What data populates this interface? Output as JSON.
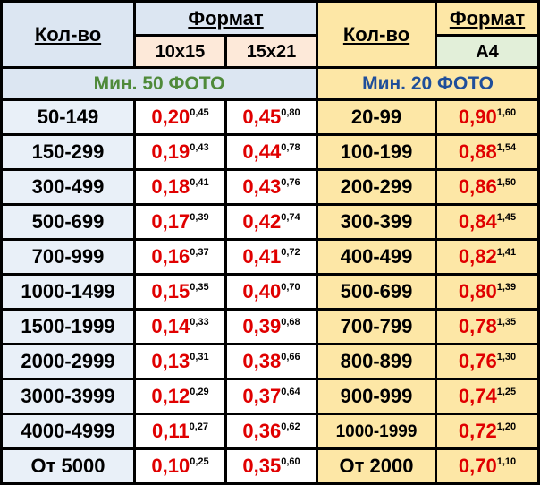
{
  "left": {
    "qty_header": "Кол-во",
    "format_header": "Формат",
    "sizes": [
      "10x15",
      "15x21"
    ],
    "minimum": "Мин. 50 ФОТО",
    "rows": [
      {
        "qty": "50-149",
        "prices": [
          [
            "0,20",
            "0,45"
          ],
          [
            "0,45",
            "0,80"
          ]
        ]
      },
      {
        "qty": "150-299",
        "prices": [
          [
            "0,19",
            "0,43"
          ],
          [
            "0,44",
            "0,78"
          ]
        ]
      },
      {
        "qty": "300-499",
        "prices": [
          [
            "0,18",
            "0,41"
          ],
          [
            "0,43",
            "0,76"
          ]
        ]
      },
      {
        "qty": "500-699",
        "prices": [
          [
            "0,17",
            "0,39"
          ],
          [
            "0,42",
            "0,74"
          ]
        ]
      },
      {
        "qty": "700-999",
        "prices": [
          [
            "0,16",
            "0,37"
          ],
          [
            "0,41",
            "0,72"
          ]
        ]
      },
      {
        "qty": "1000-1499",
        "prices": [
          [
            "0,15",
            "0,35"
          ],
          [
            "0,40",
            "0,70"
          ]
        ]
      },
      {
        "qty": "1500-1999",
        "prices": [
          [
            "0,14",
            "0,33"
          ],
          [
            "0,39",
            "0,68"
          ]
        ]
      },
      {
        "qty": "2000-2999",
        "prices": [
          [
            "0,13",
            "0,31"
          ],
          [
            "0,38",
            "0,66"
          ]
        ]
      },
      {
        "qty": "3000-3999",
        "prices": [
          [
            "0,12",
            "0,29"
          ],
          [
            "0,37",
            "0,64"
          ]
        ]
      },
      {
        "qty": "4000-4999",
        "prices": [
          [
            "0,11",
            "0,27"
          ],
          [
            "0,36",
            "0,62"
          ]
        ]
      },
      {
        "qty": "От 5000",
        "prices": [
          [
            "0,10",
            "0,25"
          ],
          [
            "0,35",
            "0,60"
          ]
        ]
      }
    ]
  },
  "right": {
    "qty_header": "Кол-во",
    "format_header": "Формат",
    "sizes": [
      "A4"
    ],
    "minimum": "Мин. 20 ФОТО",
    "rows": [
      {
        "qty": "20-99",
        "prices": [
          [
            "0,90",
            "1,60"
          ]
        ]
      },
      {
        "qty": "100-199",
        "prices": [
          [
            "0,88",
            "1,54"
          ]
        ]
      },
      {
        "qty": "200-299",
        "prices": [
          [
            "0,86",
            "1,50"
          ]
        ]
      },
      {
        "qty": "300-399",
        "prices": [
          [
            "0,84",
            "1,45"
          ]
        ]
      },
      {
        "qty": "400-499",
        "prices": [
          [
            "0,82",
            "1,41"
          ]
        ]
      },
      {
        "qty": "500-699",
        "prices": [
          [
            "0,80",
            "1,39"
          ]
        ]
      },
      {
        "qty": "700-799",
        "prices": [
          [
            "0,78",
            "1,35"
          ]
        ]
      },
      {
        "qty": "800-899",
        "prices": [
          [
            "0,76",
            "1,30"
          ]
        ]
      },
      {
        "qty": "900-999",
        "prices": [
          [
            "0,74",
            "1,25"
          ]
        ]
      },
      {
        "qty": "1000-1999",
        "prices": [
          [
            "0,72",
            "1,20"
          ]
        ]
      },
      {
        "qty": "От 2000",
        "prices": [
          [
            "0,70",
            "1,10"
          ]
        ]
      }
    ]
  }
}
